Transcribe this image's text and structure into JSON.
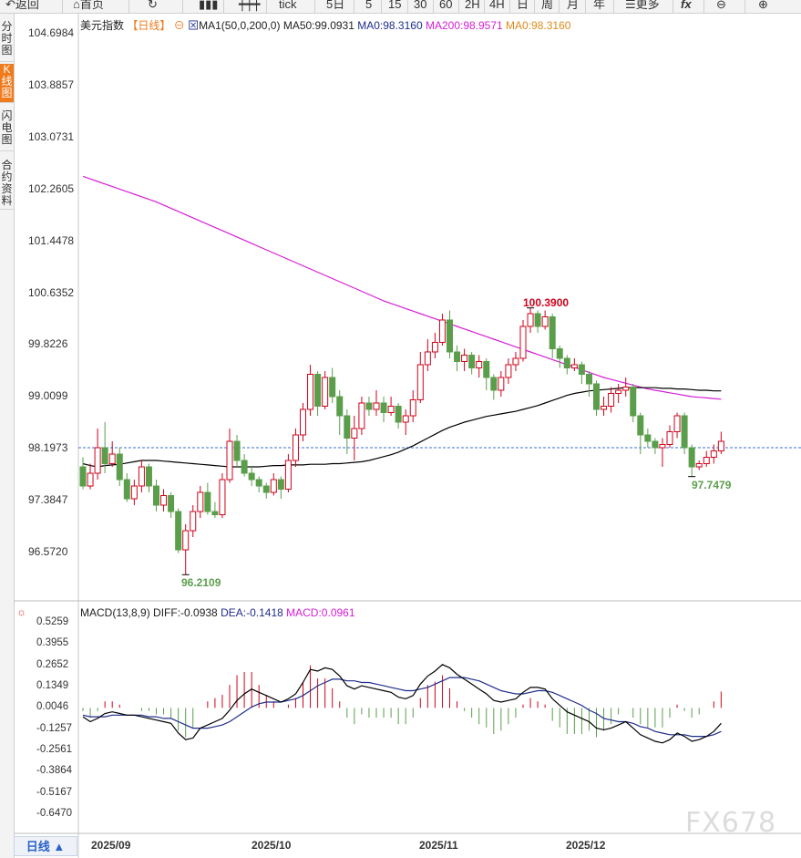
{
  "toolbar": {
    "back": "返回",
    "home": "首页",
    "tick": "tick",
    "five_day": "5日",
    "m5": "5",
    "m15": "15",
    "m30": "30",
    "m60": "60",
    "h2": "2H",
    "h4": "4H",
    "day": "日",
    "week": "周",
    "month": "月",
    "year": "年",
    "more": "更多",
    "fx": "fx"
  },
  "sidebar": {
    "tabs": [
      {
        "label": "分时图"
      },
      {
        "label": "K线图"
      },
      {
        "label": "闪电图"
      },
      {
        "label": "合约资料"
      }
    ]
  },
  "legend": {
    "symbol": "美元指数",
    "period": "【日线】",
    "ma_name": "MA1(50,0,200,0)",
    "ma50": "MA50:99.0931",
    "ma0a": "MA0:98.3160",
    "ma200": "MA200:98.9571",
    "ma0b": "MA0:98.3160"
  },
  "macd_legend": {
    "name": "MACD(13,8,9)",
    "diff": "DIFF:-0.0938",
    "dea": "DEA:-0.1418",
    "macd": "MACD:0.0961"
  },
  "annotations": {
    "high": "100.3900",
    "low": "96.2109",
    "last_low": "97.7479"
  },
  "bottom": {
    "period_button": "日线 ▲",
    "watermark": "FX678"
  },
  "colors": {
    "up": "#d0021b",
    "down": "#5a9e4b",
    "ma50": "#000000",
    "ma200": "#d61ed6",
    "dea": "#1f2d8a",
    "diff": "#000000",
    "last_price": "#3a6fd8"
  },
  "chart_data": [
    {
      "type": "candlestick",
      "y_ticks": [
        "104.6984",
        "103.8857",
        "103.0731",
        "102.2605",
        "101.4478",
        "100.6352",
        "99.8226",
        "99.0099",
        "98.1973",
        "97.3847",
        "96.5720"
      ],
      "ylim": [
        96.0,
        104.7
      ],
      "x_ticks": [
        "2025/09",
        "2025/10",
        "2025/11",
        "2025/12"
      ],
      "last_price_line": 98.2,
      "candles": [
        [
          97.9,
          97.6,
          98.05,
          97.55
        ],
        [
          97.6,
          97.8,
          97.95,
          97.55
        ],
        [
          97.8,
          98.2,
          98.5,
          97.7
        ],
        [
          98.2,
          97.95,
          98.6,
          97.8
        ],
        [
          97.95,
          98.1,
          98.3,
          97.9
        ],
        [
          98.1,
          97.7,
          98.2,
          97.6
        ],
        [
          97.7,
          97.4,
          97.8,
          97.35
        ],
        [
          97.4,
          97.6,
          97.7,
          97.3
        ],
        [
          97.6,
          97.9,
          98.0,
          97.5
        ],
        [
          97.9,
          97.6,
          97.95,
          97.5
        ],
        [
          97.6,
          97.3,
          97.7,
          97.2
        ],
        [
          97.3,
          97.45,
          97.55,
          97.2
        ],
        [
          97.45,
          97.2,
          97.5,
          97.1
        ],
        [
          97.2,
          96.6,
          97.25,
          96.55
        ],
        [
          96.6,
          96.9,
          97.0,
          96.21
        ],
        [
          96.9,
          97.2,
          97.3,
          96.8
        ],
        [
          97.2,
          97.5,
          97.6,
          97.1
        ],
        [
          97.5,
          97.2,
          97.65,
          97.15
        ],
        [
          97.2,
          97.15,
          97.35,
          97.1
        ],
        [
          97.15,
          97.7,
          97.8,
          97.1
        ],
        [
          97.7,
          98.3,
          98.5,
          97.65
        ],
        [
          98.3,
          98.0,
          98.4,
          97.9
        ],
        [
          98.0,
          97.8,
          98.1,
          97.75
        ],
        [
          97.8,
          97.7,
          97.9,
          97.6
        ],
        [
          97.7,
          97.6,
          97.75,
          97.5
        ],
        [
          97.6,
          97.5,
          97.65,
          97.4
        ],
        [
          97.5,
          97.7,
          97.8,
          97.45
        ],
        [
          97.7,
          97.55,
          97.75,
          97.4
        ],
        [
          97.55,
          98.0,
          98.1,
          97.5
        ],
        [
          98.0,
          98.4,
          98.5,
          97.9
        ],
        [
          98.4,
          98.8,
          98.9,
          98.3
        ],
        [
          98.8,
          99.35,
          99.5,
          98.7
        ],
        [
          99.35,
          98.85,
          99.4,
          98.7
        ],
        [
          98.85,
          99.3,
          99.4,
          98.8
        ],
        [
          99.3,
          99.0,
          99.45,
          98.9
        ],
        [
          99.0,
          98.7,
          99.1,
          98.4
        ],
        [
          98.7,
          98.35,
          98.8,
          98.1
        ],
        [
          98.35,
          98.5,
          98.7,
          98.0
        ],
        [
          98.5,
          98.9,
          99.0,
          98.4
        ],
        [
          98.9,
          98.8,
          99.0,
          98.7
        ],
        [
          98.8,
          98.9,
          99.1,
          98.7
        ],
        [
          98.9,
          98.75,
          99.0,
          98.6
        ],
        [
          98.75,
          98.85,
          99.0,
          98.7
        ],
        [
          98.85,
          98.6,
          98.9,
          98.5
        ],
        [
          98.6,
          98.7,
          98.8,
          98.4
        ],
        [
          98.7,
          98.95,
          99.1,
          98.6
        ],
        [
          98.95,
          99.5,
          99.7,
          98.9
        ],
        [
          99.5,
          99.7,
          99.9,
          99.4
        ],
        [
          99.7,
          99.85,
          100.0,
          99.6
        ],
        [
          99.85,
          100.2,
          100.3,
          99.8
        ],
        [
          100.2,
          99.7,
          100.35,
          99.6
        ],
        [
          99.7,
          99.55,
          99.8,
          99.4
        ],
        [
          99.55,
          99.65,
          99.75,
          99.4
        ],
        [
          99.65,
          99.45,
          99.7,
          99.35
        ],
        [
          99.45,
          99.55,
          99.65,
          99.3
        ],
        [
          99.55,
          99.3,
          99.6,
          99.1
        ],
        [
          99.3,
          99.1,
          99.35,
          98.95
        ],
        [
          99.1,
          99.3,
          99.4,
          99.0
        ],
        [
          99.3,
          99.5,
          99.6,
          99.2
        ],
        [
          99.5,
          99.6,
          99.7,
          99.4
        ],
        [
          99.6,
          100.1,
          100.2,
          99.55
        ],
        [
          100.1,
          100.3,
          100.39,
          100.0
        ],
        [
          100.3,
          100.1,
          100.35,
          100.0
        ],
        [
          100.1,
          100.25,
          100.35,
          100.05
        ],
        [
          100.25,
          99.75,
          100.3,
          99.6
        ],
        [
          99.75,
          99.6,
          99.8,
          99.45
        ],
        [
          99.6,
          99.45,
          99.65,
          99.35
        ],
        [
          99.45,
          99.5,
          99.6,
          99.4
        ],
        [
          99.5,
          99.35,
          99.55,
          99.2
        ],
        [
          99.35,
          99.2,
          99.4,
          99.0
        ],
        [
          99.2,
          98.8,
          99.25,
          98.7
        ],
        [
          98.8,
          98.85,
          99.0,
          98.7
        ],
        [
          98.85,
          99.05,
          99.15,
          98.75
        ],
        [
          99.05,
          99.1,
          99.2,
          98.9
        ],
        [
          99.1,
          99.15,
          99.3,
          99.0
        ],
        [
          99.15,
          98.7,
          99.2,
          98.6
        ],
        [
          98.7,
          98.4,
          98.75,
          98.1
        ],
        [
          98.4,
          98.3,
          98.5,
          98.2
        ],
        [
          98.3,
          98.2,
          98.35,
          98.1
        ],
        [
          98.2,
          98.25,
          98.35,
          97.9
        ],
        [
          98.25,
          98.45,
          98.55,
          98.2
        ],
        [
          98.45,
          98.7,
          98.75,
          98.35
        ],
        [
          98.7,
          98.2,
          98.75,
          98.1
        ],
        [
          98.2,
          97.9,
          98.25,
          97.75
        ],
        [
          97.9,
          97.95,
          98.0,
          97.85
        ],
        [
          97.95,
          98.05,
          98.15,
          97.9
        ],
        [
          98.05,
          98.15,
          98.25,
          97.95
        ],
        [
          98.15,
          98.3,
          98.45,
          98.1
        ]
      ],
      "ma50": [
        97.95,
        97.92,
        97.9,
        97.92,
        97.93,
        97.94,
        97.96,
        97.98,
        98.0,
        98.0,
        98.0,
        97.99,
        97.98,
        97.97,
        97.96,
        97.95,
        97.94,
        97.93,
        97.92,
        97.91,
        97.9,
        97.9,
        97.9,
        97.9,
        97.9,
        97.91,
        97.92,
        97.92,
        97.93,
        97.93,
        97.93,
        97.94,
        97.94,
        97.94,
        97.95,
        97.95,
        97.96,
        97.97,
        97.98,
        98.0,
        98.03,
        98.06,
        98.09,
        98.13,
        98.18,
        98.23,
        98.29,
        98.35,
        98.41,
        98.47,
        98.52,
        98.56,
        98.6,
        98.63,
        98.66,
        98.69,
        98.71,
        98.73,
        98.75,
        98.77,
        98.8,
        98.83,
        98.86,
        98.9,
        98.94,
        98.98,
        99.02,
        99.05,
        99.07,
        99.09,
        99.1,
        99.11,
        99.12,
        99.13,
        99.14,
        99.14,
        99.14,
        99.14,
        99.14,
        99.13,
        99.13,
        99.12,
        99.12,
        99.11,
        99.1,
        99.1,
        99.09,
        99.09
      ],
      "ma200": [
        102.45,
        102.41,
        102.37,
        102.33,
        102.29,
        102.25,
        102.21,
        102.17,
        102.13,
        102.09,
        102.05,
        102.0,
        101.95,
        101.9,
        101.85,
        101.8,
        101.75,
        101.7,
        101.65,
        101.6,
        101.55,
        101.5,
        101.45,
        101.4,
        101.35,
        101.3,
        101.25,
        101.2,
        101.15,
        101.1,
        101.05,
        101.0,
        100.95,
        100.9,
        100.85,
        100.8,
        100.75,
        100.7,
        100.65,
        100.6,
        100.55,
        100.5,
        100.46,
        100.42,
        100.38,
        100.34,
        100.3,
        100.26,
        100.22,
        100.18,
        100.14,
        100.1,
        100.06,
        100.02,
        99.98,
        99.94,
        99.9,
        99.86,
        99.82,
        99.78,
        99.74,
        99.7,
        99.66,
        99.62,
        99.58,
        99.54,
        99.5,
        99.46,
        99.42,
        99.38,
        99.34,
        99.3,
        99.27,
        99.24,
        99.21,
        99.18,
        99.15,
        99.12,
        99.1,
        99.08,
        99.06,
        99.04,
        99.02,
        99.0,
        98.99,
        98.98,
        98.97,
        98.96
      ]
    },
    {
      "type": "macd",
      "y_ticks": [
        "0.5259",
        "0.3955",
        "0.2652",
        "0.1349",
        "0.0046",
        "-0.1257",
        "-0.2561",
        "-0.3864",
        "-0.5167",
        "-0.6470"
      ],
      "ylim": [
        -0.72,
        0.6
      ],
      "diff": [
        -0.05,
        -0.08,
        -0.06,
        -0.03,
        -0.02,
        -0.03,
        -0.04,
        -0.04,
        -0.05,
        -0.06,
        -0.07,
        -0.08,
        -0.09,
        -0.15,
        -0.19,
        -0.18,
        -0.12,
        -0.1,
        -0.08,
        -0.06,
        -0.01,
        0.05,
        0.09,
        0.12,
        0.1,
        0.08,
        0.06,
        0.04,
        0.06,
        0.09,
        0.16,
        0.24,
        0.23,
        0.25,
        0.24,
        0.2,
        0.14,
        0.12,
        0.14,
        0.13,
        0.12,
        0.11,
        0.1,
        0.07,
        0.06,
        0.08,
        0.15,
        0.2,
        0.23,
        0.27,
        0.25,
        0.21,
        0.18,
        0.15,
        0.12,
        0.09,
        0.05,
        0.04,
        0.05,
        0.06,
        0.1,
        0.13,
        0.13,
        0.12,
        0.06,
        0.02,
        -0.02,
        -0.04,
        -0.06,
        -0.08,
        -0.12,
        -0.13,
        -0.12,
        -0.1,
        -0.08,
        -0.12,
        -0.16,
        -0.18,
        -0.2,
        -0.21,
        -0.19,
        -0.15,
        -0.17,
        -0.2,
        -0.19,
        -0.17,
        -0.14,
        -0.09
      ],
      "dea": [
        -0.04,
        -0.05,
        -0.05,
        -0.05,
        -0.04,
        -0.04,
        -0.04,
        -0.04,
        -0.04,
        -0.05,
        -0.05,
        -0.06,
        -0.06,
        -0.08,
        -0.1,
        -0.12,
        -0.12,
        -0.12,
        -0.11,
        -0.1,
        -0.08,
        -0.05,
        -0.02,
        0.01,
        0.03,
        0.04,
        0.04,
        0.04,
        0.05,
        0.06,
        0.08,
        0.11,
        0.14,
        0.16,
        0.18,
        0.18,
        0.17,
        0.17,
        0.16,
        0.16,
        0.15,
        0.14,
        0.13,
        0.12,
        0.11,
        0.11,
        0.12,
        0.13,
        0.15,
        0.17,
        0.19,
        0.19,
        0.19,
        0.18,
        0.17,
        0.15,
        0.13,
        0.11,
        0.1,
        0.09,
        0.09,
        0.1,
        0.11,
        0.11,
        0.1,
        0.08,
        0.06,
        0.04,
        0.02,
        -0.01,
        -0.03,
        -0.06,
        -0.07,
        -0.08,
        -0.08,
        -0.09,
        -0.11,
        -0.12,
        -0.14,
        -0.15,
        -0.16,
        -0.16,
        -0.16,
        -0.17,
        -0.17,
        -0.17,
        -0.16,
        -0.14
      ]
    }
  ]
}
